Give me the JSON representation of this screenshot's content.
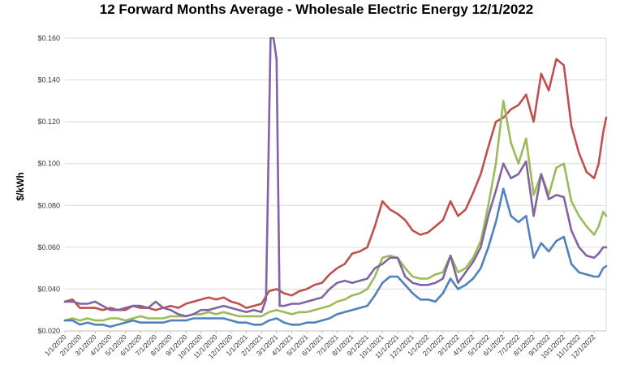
{
  "chart_data": {
    "type": "line",
    "title": "12 Forward Months Average - Wholesale Electric Energy 12/1/2022",
    "ylabel": "$/kWh",
    "xlabel": "",
    "ylim": [
      0.02,
      0.16
    ],
    "grid": true,
    "y_ticks": [
      "$0.020",
      "$0.040",
      "$0.060",
      "$0.080",
      "$0.100",
      "$0.120",
      "$0.140",
      "$0.160"
    ],
    "categories": [
      "1/1/2020",
      "2/1/2020",
      "3/1/2020",
      "4/1/2020",
      "5/1/2020",
      "6/1/2020",
      "7/1/2020",
      "8/1/2020",
      "9/1/2020",
      "10/1/2020",
      "11/1/2020",
      "12/1/2020",
      "1/1/2021",
      "2/1/2021",
      "3/1/2021",
      "4/1/2021",
      "5/1/2021",
      "6/1/2021",
      "7/1/2021",
      "8/1/2021",
      "9/1/2021",
      "10/1/2021",
      "11/1/2021",
      "12/1/2021",
      "1/1/2022",
      "2/1/2022",
      "3/1/2022",
      "4/1/2022",
      "5/1/2022",
      "6/1/2022",
      "7/1/2022",
      "8/1/2022",
      "9/1/2022",
      "10/1/2022",
      "11/1/2022",
      "12/1/2022"
    ],
    "series": [
      {
        "color": "#c0504d",
        "values": [
          [
            0,
            0.034
          ],
          [
            0.5,
            0.035
          ],
          [
            1,
            0.031
          ],
          [
            1.5,
            0.031
          ],
          [
            2,
            0.031
          ],
          [
            2.5,
            0.03
          ],
          [
            3,
            0.031
          ],
          [
            3.5,
            0.03
          ],
          [
            4,
            0.03
          ],
          [
            4.5,
            0.032
          ],
          [
            5,
            0.031
          ],
          [
            5.5,
            0.031
          ],
          [
            6,
            0.03
          ],
          [
            6.5,
            0.031
          ],
          [
            7,
            0.032
          ],
          [
            7.5,
            0.031
          ],
          [
            8,
            0.033
          ],
          [
            8.5,
            0.034
          ],
          [
            9,
            0.035
          ],
          [
            9.5,
            0.036
          ],
          [
            10,
            0.035
          ],
          [
            10.5,
            0.036
          ],
          [
            11,
            0.034
          ],
          [
            11.5,
            0.033
          ],
          [
            12,
            0.031
          ],
          [
            12.5,
            0.032
          ],
          [
            13,
            0.033
          ],
          [
            13.5,
            0.039
          ],
          [
            14,
            0.04
          ],
          [
            14.5,
            0.038
          ],
          [
            15,
            0.037
          ],
          [
            15.5,
            0.039
          ],
          [
            16,
            0.04
          ],
          [
            16.5,
            0.042
          ],
          [
            17,
            0.043
          ],
          [
            17.5,
            0.047
          ],
          [
            18,
            0.05
          ],
          [
            18.5,
            0.052
          ],
          [
            19,
            0.057
          ],
          [
            19.5,
            0.058
          ],
          [
            20,
            0.06
          ],
          [
            20.5,
            0.07
          ],
          [
            21,
            0.082
          ],
          [
            21.5,
            0.078
          ],
          [
            22,
            0.076
          ],
          [
            22.5,
            0.073
          ],
          [
            23,
            0.068
          ],
          [
            23.5,
            0.066
          ],
          [
            24,
            0.067
          ],
          [
            24.5,
            0.07
          ],
          [
            25,
            0.073
          ],
          [
            25.5,
            0.082
          ],
          [
            26,
            0.075
          ],
          [
            26.5,
            0.078
          ],
          [
            27,
            0.086
          ],
          [
            27.5,
            0.095
          ],
          [
            28,
            0.108
          ],
          [
            28.5,
            0.12
          ],
          [
            29,
            0.122
          ],
          [
            29.5,
            0.126
          ],
          [
            30,
            0.128
          ],
          [
            30.5,
            0.133
          ],
          [
            31,
            0.12
          ],
          [
            31.5,
            0.143
          ],
          [
            32,
            0.135
          ],
          [
            32.5,
            0.15
          ],
          [
            33,
            0.147
          ],
          [
            33.5,
            0.118
          ],
          [
            34,
            0.105
          ],
          [
            34.5,
            0.096
          ],
          [
            35,
            0.093
          ],
          [
            35.3,
            0.1
          ],
          [
            35.6,
            0.115
          ],
          [
            35.8,
            0.122
          ]
        ]
      },
      {
        "color": "#9bbb59",
        "values": [
          [
            0,
            0.025
          ],
          [
            0.5,
            0.026
          ],
          [
            1,
            0.025
          ],
          [
            1.5,
            0.026
          ],
          [
            2,
            0.025
          ],
          [
            2.5,
            0.025
          ],
          [
            3,
            0.026
          ],
          [
            3.5,
            0.026
          ],
          [
            4,
            0.025
          ],
          [
            4.5,
            0.026
          ],
          [
            5,
            0.027
          ],
          [
            5.5,
            0.026
          ],
          [
            6,
            0.026
          ],
          [
            6.5,
            0.026
          ],
          [
            7,
            0.027
          ],
          [
            7.5,
            0.027
          ],
          [
            8,
            0.027
          ],
          [
            8.5,
            0.028
          ],
          [
            9,
            0.028
          ],
          [
            9.5,
            0.029
          ],
          [
            10,
            0.028
          ],
          [
            10.5,
            0.029
          ],
          [
            11,
            0.028
          ],
          [
            11.5,
            0.027
          ],
          [
            12,
            0.027
          ],
          [
            12.5,
            0.027
          ],
          [
            13,
            0.027
          ],
          [
            13.5,
            0.029
          ],
          [
            14,
            0.03
          ],
          [
            14.5,
            0.029
          ],
          [
            15,
            0.028
          ],
          [
            15.5,
            0.029
          ],
          [
            16,
            0.029
          ],
          [
            16.5,
            0.03
          ],
          [
            17,
            0.031
          ],
          [
            17.5,
            0.032
          ],
          [
            18,
            0.034
          ],
          [
            18.5,
            0.035
          ],
          [
            19,
            0.037
          ],
          [
            19.5,
            0.038
          ],
          [
            20,
            0.04
          ],
          [
            20.5,
            0.046
          ],
          [
            21,
            0.055
          ],
          [
            21.5,
            0.056
          ],
          [
            22,
            0.055
          ],
          [
            22.5,
            0.05
          ],
          [
            23,
            0.046
          ],
          [
            23.5,
            0.045
          ],
          [
            24,
            0.045
          ],
          [
            24.5,
            0.047
          ],
          [
            25,
            0.048
          ],
          [
            25.5,
            0.056
          ],
          [
            26,
            0.048
          ],
          [
            26.5,
            0.05
          ],
          [
            27,
            0.055
          ],
          [
            27.5,
            0.063
          ],
          [
            28,
            0.08
          ],
          [
            28.5,
            0.1
          ],
          [
            29,
            0.13
          ],
          [
            29.5,
            0.11
          ],
          [
            30,
            0.1
          ],
          [
            30.5,
            0.112
          ],
          [
            31,
            0.085
          ],
          [
            31.5,
            0.095
          ],
          [
            32,
            0.085
          ],
          [
            32.5,
            0.098
          ],
          [
            33,
            0.1
          ],
          [
            33.5,
            0.082
          ],
          [
            34,
            0.075
          ],
          [
            34.5,
            0.07
          ],
          [
            35,
            0.066
          ],
          [
            35.3,
            0.07
          ],
          [
            35.6,
            0.077
          ],
          [
            35.8,
            0.075
          ]
        ]
      },
      {
        "color": "#8064a2",
        "values": [
          [
            0,
            0.034
          ],
          [
            0.5,
            0.034
          ],
          [
            1,
            0.033
          ],
          [
            1.5,
            0.033
          ],
          [
            2,
            0.034
          ],
          [
            2.5,
            0.032
          ],
          [
            3,
            0.03
          ],
          [
            3.5,
            0.03
          ],
          [
            4,
            0.031
          ],
          [
            4.5,
            0.032
          ],
          [
            5,
            0.032
          ],
          [
            5.5,
            0.031
          ],
          [
            6,
            0.034
          ],
          [
            6.5,
            0.031
          ],
          [
            7,
            0.03
          ],
          [
            7.5,
            0.028
          ],
          [
            8,
            0.027
          ],
          [
            8.5,
            0.028
          ],
          [
            9,
            0.03
          ],
          [
            9.5,
            0.03
          ],
          [
            10,
            0.031
          ],
          [
            10.5,
            0.032
          ],
          [
            11,
            0.031
          ],
          [
            11.5,
            0.03
          ],
          [
            12,
            0.029
          ],
          [
            12.5,
            0.03
          ],
          [
            13,
            0.029
          ],
          [
            13.3,
            0.035
          ],
          [
            13.6,
            0.16
          ],
          [
            13.8,
            0.16
          ],
          [
            14,
            0.15
          ],
          [
            14.2,
            0.032
          ],
          [
            14.5,
            0.032
          ],
          [
            15,
            0.033
          ],
          [
            15.5,
            0.033
          ],
          [
            16,
            0.034
          ],
          [
            16.5,
            0.035
          ],
          [
            17,
            0.036
          ],
          [
            17.5,
            0.04
          ],
          [
            18,
            0.043
          ],
          [
            18.5,
            0.044
          ],
          [
            19,
            0.043
          ],
          [
            19.5,
            0.044
          ],
          [
            20,
            0.045
          ],
          [
            20.5,
            0.05
          ],
          [
            21,
            0.052
          ],
          [
            21.5,
            0.055
          ],
          [
            22,
            0.055
          ],
          [
            22.5,
            0.046
          ],
          [
            23,
            0.043
          ],
          [
            23.5,
            0.042
          ],
          [
            24,
            0.042
          ],
          [
            24.5,
            0.043
          ],
          [
            25,
            0.045
          ],
          [
            25.5,
            0.056
          ],
          [
            26,
            0.043
          ],
          [
            26.5,
            0.048
          ],
          [
            27,
            0.053
          ],
          [
            27.5,
            0.06
          ],
          [
            28,
            0.075
          ],
          [
            28.5,
            0.087
          ],
          [
            29,
            0.1
          ],
          [
            29.5,
            0.093
          ],
          [
            30,
            0.095
          ],
          [
            30.5,
            0.101
          ],
          [
            31,
            0.075
          ],
          [
            31.5,
            0.095
          ],
          [
            32,
            0.083
          ],
          [
            32.5,
            0.085
          ],
          [
            33,
            0.084
          ],
          [
            33.5,
            0.068
          ],
          [
            34,
            0.06
          ],
          [
            34.5,
            0.056
          ],
          [
            35,
            0.055
          ],
          [
            35.3,
            0.057
          ],
          [
            35.6,
            0.06
          ],
          [
            35.8,
            0.06
          ]
        ]
      },
      {
        "color": "#4f81bd",
        "values": [
          [
            0,
            0.025
          ],
          [
            0.5,
            0.025
          ],
          [
            1,
            0.023
          ],
          [
            1.5,
            0.024
          ],
          [
            2,
            0.023
          ],
          [
            2.5,
            0.023
          ],
          [
            3,
            0.022
          ],
          [
            3.5,
            0.023
          ],
          [
            4,
            0.024
          ],
          [
            4.5,
            0.025
          ],
          [
            5,
            0.024
          ],
          [
            5.5,
            0.024
          ],
          [
            6,
            0.024
          ],
          [
            6.5,
            0.024
          ],
          [
            7,
            0.025
          ],
          [
            7.5,
            0.025
          ],
          [
            8,
            0.025
          ],
          [
            8.5,
            0.026
          ],
          [
            9,
            0.026
          ],
          [
            9.5,
            0.026
          ],
          [
            10,
            0.026
          ],
          [
            10.5,
            0.026
          ],
          [
            11,
            0.025
          ],
          [
            11.5,
            0.024
          ],
          [
            12,
            0.024
          ],
          [
            12.5,
            0.023
          ],
          [
            13,
            0.023
          ],
          [
            13.5,
            0.025
          ],
          [
            14,
            0.026
          ],
          [
            14.5,
            0.024
          ],
          [
            15,
            0.023
          ],
          [
            15.5,
            0.023
          ],
          [
            16,
            0.024
          ],
          [
            16.5,
            0.024
          ],
          [
            17,
            0.025
          ],
          [
            17.5,
            0.026
          ],
          [
            18,
            0.028
          ],
          [
            18.5,
            0.029
          ],
          [
            19,
            0.03
          ],
          [
            19.5,
            0.031
          ],
          [
            20,
            0.032
          ],
          [
            20.5,
            0.037
          ],
          [
            21,
            0.043
          ],
          [
            21.5,
            0.046
          ],
          [
            22,
            0.046
          ],
          [
            22.5,
            0.042
          ],
          [
            23,
            0.038
          ],
          [
            23.5,
            0.035
          ],
          [
            24,
            0.035
          ],
          [
            24.5,
            0.034
          ],
          [
            25,
            0.038
          ],
          [
            25.5,
            0.045
          ],
          [
            26,
            0.04
          ],
          [
            26.5,
            0.042
          ],
          [
            27,
            0.045
          ],
          [
            27.5,
            0.05
          ],
          [
            28,
            0.06
          ],
          [
            28.5,
            0.072
          ],
          [
            29,
            0.088
          ],
          [
            29.5,
            0.075
          ],
          [
            30,
            0.072
          ],
          [
            30.5,
            0.075
          ],
          [
            31,
            0.055
          ],
          [
            31.5,
            0.062
          ],
          [
            32,
            0.058
          ],
          [
            32.5,
            0.063
          ],
          [
            33,
            0.065
          ],
          [
            33.5,
            0.052
          ],
          [
            34,
            0.048
          ],
          [
            34.5,
            0.047
          ],
          [
            35,
            0.046
          ],
          [
            35.3,
            0.046
          ],
          [
            35.6,
            0.05
          ],
          [
            35.8,
            0.051
          ]
        ]
      }
    ]
  }
}
